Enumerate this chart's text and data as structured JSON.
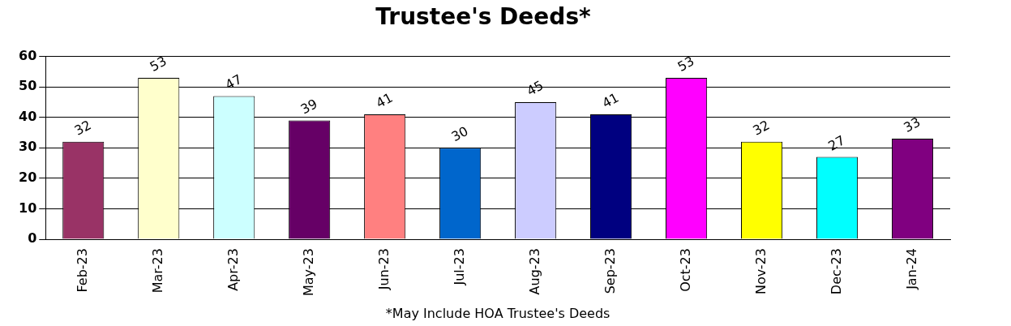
{
  "chart_data": {
    "type": "bar",
    "title": "Trustee's Deeds*",
    "categories": [
      "Feb-23",
      "Mar-23",
      "Apr-23",
      "May-23",
      "Jun-23",
      "Jul-23",
      "Aug-23",
      "Sep-23",
      "Oct-23",
      "Nov-23",
      "Dec-23",
      "Jan-24"
    ],
    "values": [
      32,
      53,
      47,
      39,
      41,
      30,
      45,
      41,
      53,
      32,
      27,
      33
    ],
    "colors": [
      "#993366",
      "#ffffcc",
      "#ccffff",
      "#660066",
      "#ff8080",
      "#0066cc",
      "#ccccff",
      "#000080",
      "#ff00ff",
      "#ffff00",
      "#00ffff",
      "#800080"
    ],
    "ylim": [
      0,
      60
    ],
    "yticks": [
      0,
      10,
      20,
      30,
      40,
      50,
      60
    ],
    "grid": "y",
    "legend": false,
    "data_labels": true,
    "annotations": [
      "*May Include HOA Trustee's Deeds"
    ]
  }
}
